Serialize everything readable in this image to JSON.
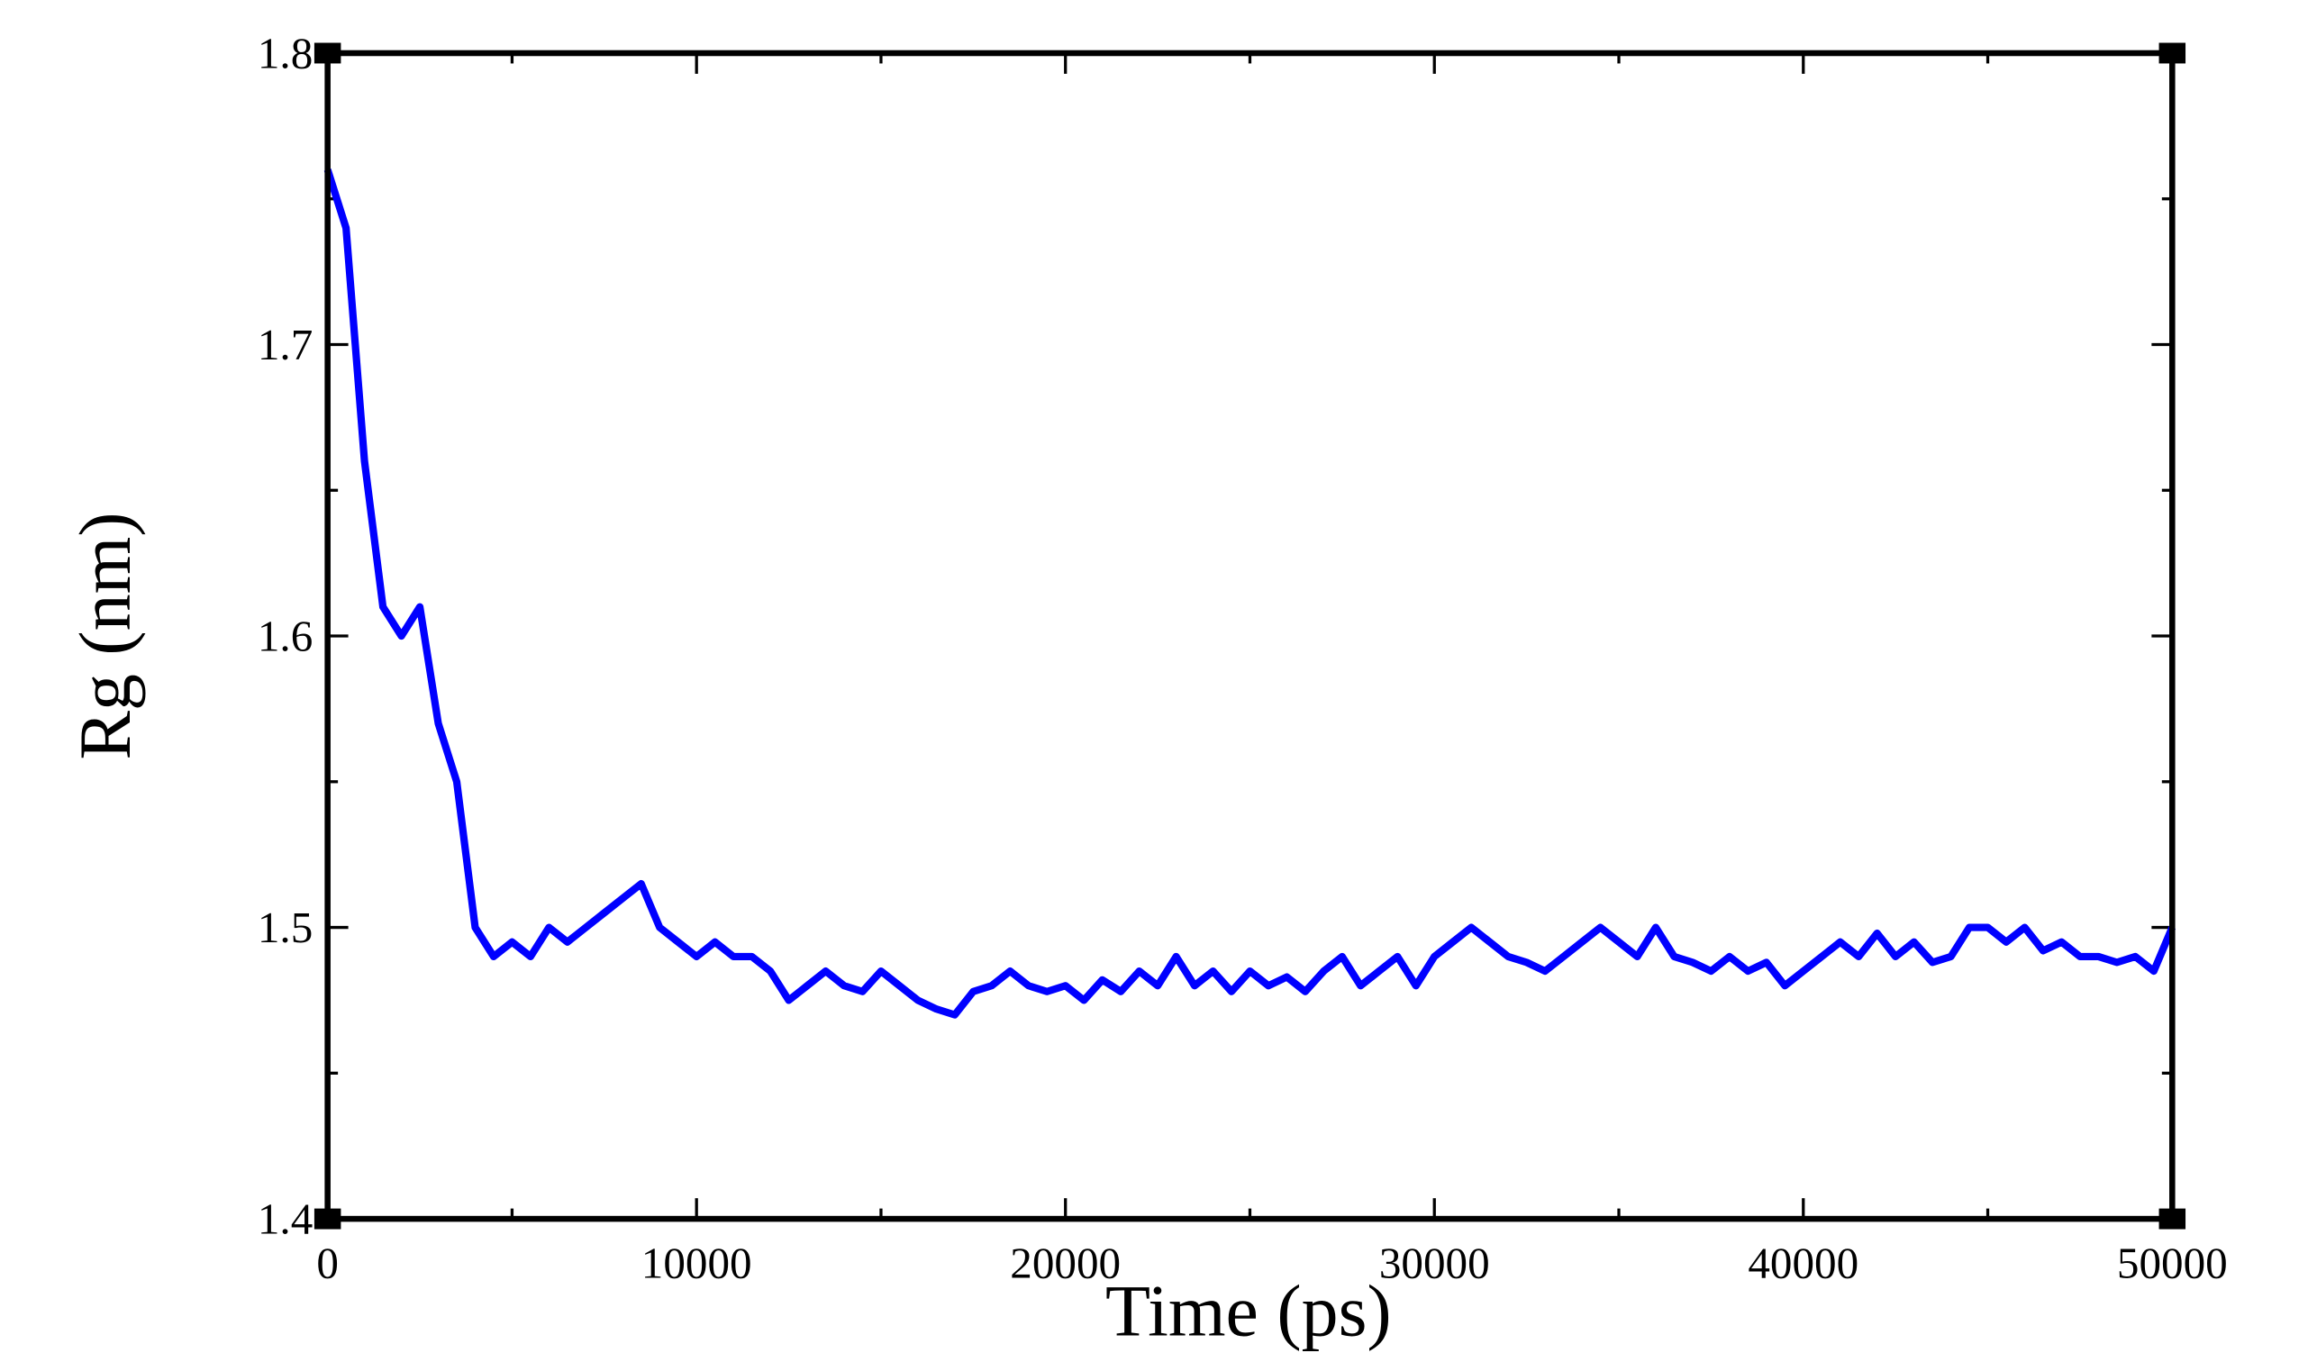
{
  "chart_data": {
    "type": "line",
    "xlabel": "Time (ps)",
    "ylabel": "Rg (nm)",
    "x": [
      0,
      500,
      1000,
      1500,
      2000,
      2500,
      3000,
      3500,
      4000,
      4500,
      5000,
      5500,
      6000,
      6500,
      7000,
      7500,
      8000,
      8500,
      9000,
      9500,
      10000,
      10500,
      11000,
      11500,
      12000,
      12500,
      13000,
      13500,
      14000,
      14500,
      15000,
      15500,
      16000,
      16500,
      17000,
      17500,
      18000,
      18500,
      19000,
      19500,
      20000,
      20500,
      21000,
      21500,
      22000,
      22500,
      23000,
      23500,
      24000,
      24500,
      25000,
      25500,
      26000,
      26500,
      27000,
      27500,
      28000,
      28500,
      29000,
      29500,
      30000,
      30500,
      31000,
      31500,
      32000,
      32500,
      33000,
      33500,
      34000,
      34500,
      35000,
      35500,
      36000,
      36500,
      37000,
      37500,
      38000,
      38500,
      39000,
      39500,
      40000,
      40500,
      41000,
      41500,
      42000,
      42500,
      43000,
      43500,
      44000,
      44500,
      45000,
      45500,
      46000,
      46500,
      47000,
      47500,
      48000,
      48500,
      49000,
      49500,
      50000
    ],
    "series": [
      {
        "name": "Rg",
        "color": "#0000ff",
        "values": [
          1.76,
          1.74,
          1.66,
          1.61,
          1.6,
          1.61,
          1.57,
          1.55,
          1.5,
          1.49,
          1.495,
          1.49,
          1.5,
          1.495,
          1.5,
          1.505,
          1.51,
          1.515,
          1.5,
          1.495,
          1.49,
          1.495,
          1.49,
          1.49,
          1.485,
          1.475,
          1.48,
          1.485,
          1.48,
          1.478,
          1.485,
          1.48,
          1.475,
          1.472,
          1.47,
          1.478,
          1.48,
          1.485,
          1.48,
          1.478,
          1.48,
          1.475,
          1.482,
          1.478,
          1.485,
          1.48,
          1.49,
          1.48,
          1.485,
          1.478,
          1.485,
          1.48,
          1.483,
          1.478,
          1.485,
          1.49,
          1.48,
          1.485,
          1.49,
          1.48,
          1.49,
          1.495,
          1.5,
          1.495,
          1.49,
          1.488,
          1.485,
          1.49,
          1.495,
          1.5,
          1.495,
          1.49,
          1.5,
          1.49,
          1.488,
          1.485,
          1.49,
          1.485,
          1.488,
          1.48,
          1.485,
          1.49,
          1.495,
          1.49,
          1.498,
          1.49,
          1.495,
          1.488,
          1.49,
          1.5,
          1.5,
          1.495,
          1.5,
          1.492,
          1.495,
          1.49,
          1.49,
          1.488,
          1.49,
          1.485,
          1.5
        ]
      }
    ],
    "xlim": [
      0,
      50000
    ],
    "xticks": [
      0,
      10000,
      20000,
      30000,
      40000,
      50000
    ],
    "ylim": [
      1.4,
      1.8
    ],
    "yticks": [
      1.4,
      1.5,
      1.6,
      1.7,
      1.8
    ]
  }
}
